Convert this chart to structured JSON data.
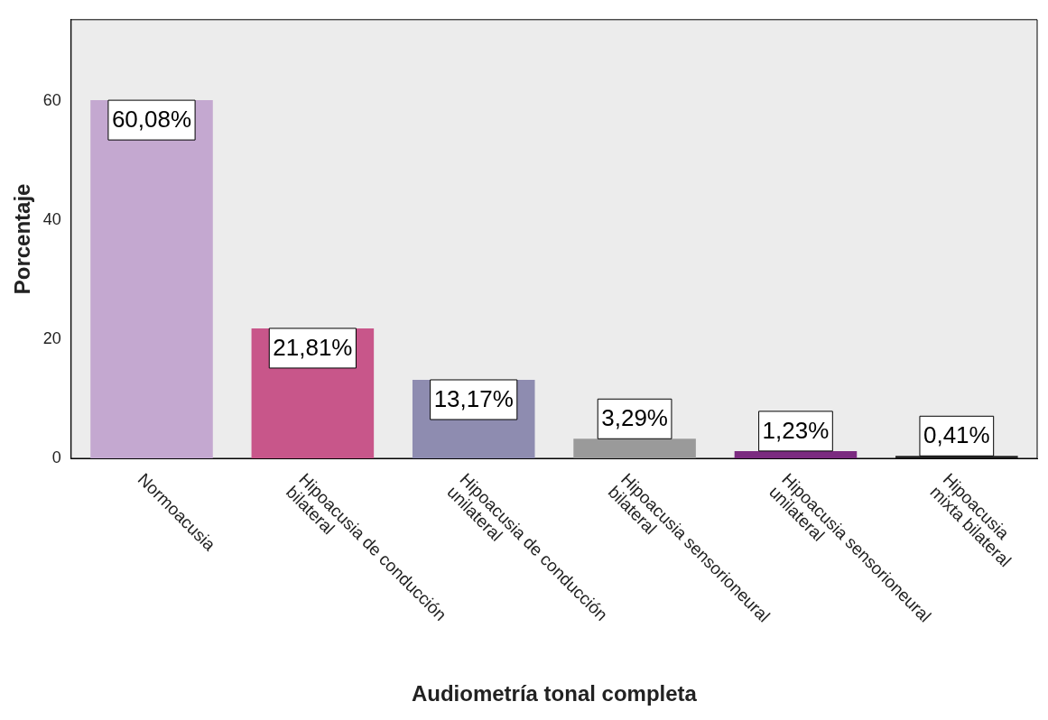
{
  "chart_data": {
    "type": "bar",
    "xlabel": "Audiometría tonal completa",
    "ylabel": "Porcentaje",
    "categories": [
      "Normoacusia",
      "Hipoacusia de conducción\nbilateral",
      "Hipoacusia de conducción\nunilateral",
      "Hipoacusia sensorioneural\nbilateral",
      "Hipoacusia sensorioneural\nunilateral",
      "Hipoacusia\nmixta bilateral"
    ],
    "values": [
      60.08,
      21.81,
      13.17,
      3.29,
      1.23,
      0.41
    ],
    "colors": [
      "#c4a8d0",
      "#c8568a",
      "#8e8cb0",
      "#9a9a9a",
      "#7b2b80",
      "#222222"
    ],
    "value_labels": [
      "60,08%",
      "21,81%",
      "13,17%",
      "3,29%",
      "1,23%",
      "0,41%"
    ],
    "ylim": [
      0,
      73.6
    ],
    "yticks": [
      0,
      20,
      40,
      60
    ],
    "grid": false,
    "legend": false
  }
}
